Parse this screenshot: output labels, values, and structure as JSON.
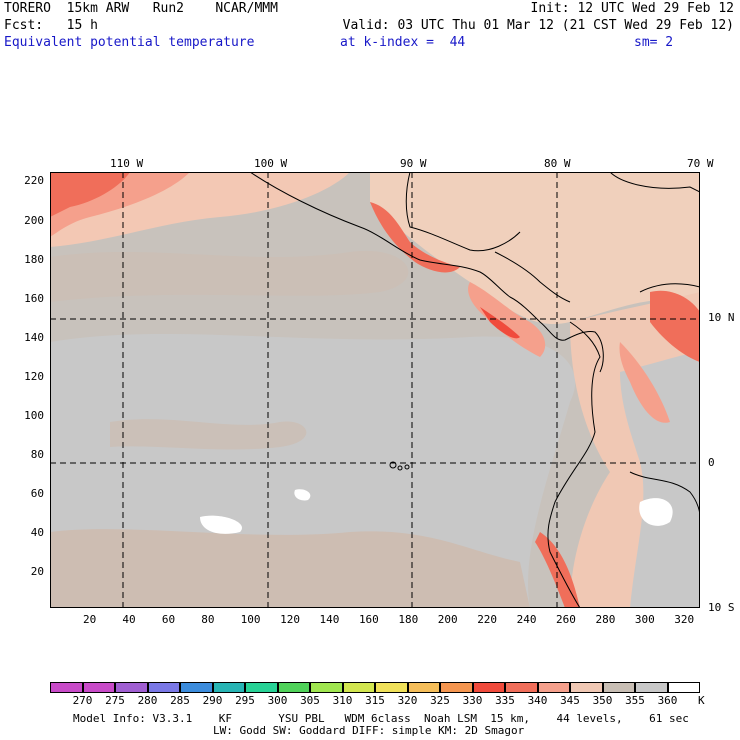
{
  "header": {
    "line1_left": "TORERO  15km ARW   Run2    NCAR/MMM",
    "line1_right": "Init: 12 UTC Wed 29 Feb 12",
    "line2_left": "Fcst:   15 h",
    "line2_right": "Valid: 03 UTC Thu 01 Mar 12 (21 CST Wed 29 Feb 12)",
    "field_name": "Equivalent potential temperature",
    "level_label": "at k-index =  44",
    "smoothing": "sm= 2"
  },
  "map": {
    "top_lon_labels": [
      "110 W",
      "100 W",
      "90 W",
      "80 W",
      "70 W"
    ],
    "right_lat_labels": [
      "10 N",
      "0",
      "10 S"
    ],
    "x_ticks": [
      "20",
      "40",
      "60",
      "80",
      "100",
      "120",
      "140",
      "160",
      "180",
      "200",
      "220",
      "240",
      "260",
      "280",
      "300",
      "320"
    ],
    "y_ticks": [
      "220",
      "200",
      "180",
      "160",
      "140",
      "120",
      "100",
      "80",
      "60",
      "40",
      "20"
    ]
  },
  "colorbar": {
    "unit": "K",
    "labels": [
      "270",
      "275",
      "280",
      "285",
      "290",
      "295",
      "300",
      "305",
      "310",
      "315",
      "320",
      "325",
      "330",
      "335",
      "340",
      "345",
      "350",
      "355",
      "360"
    ],
    "colors": [
      "#c84bc8",
      "#a05fd2",
      "#7a78e6",
      "#3c8cdc",
      "#28b4b4",
      "#28d296",
      "#50d25a",
      "#a0e650",
      "#d2e650",
      "#f0e15a",
      "#f5be5a",
      "#f59650",
      "#f04b3c",
      "#f06e5a",
      "#f5a08c",
      "#f0c8b4",
      "#c8beb4",
      "#c8c8c8",
      "#ffffff"
    ]
  },
  "footer": {
    "line1": "Model Info: V3.3.1    KF       YSU PBL   WDM 6class  Noah LSM  15 km,    44 levels,    61 sec",
    "line2": "LW: Godd SW: Goddard DIFF: simple KM: 2D Smagor"
  }
}
